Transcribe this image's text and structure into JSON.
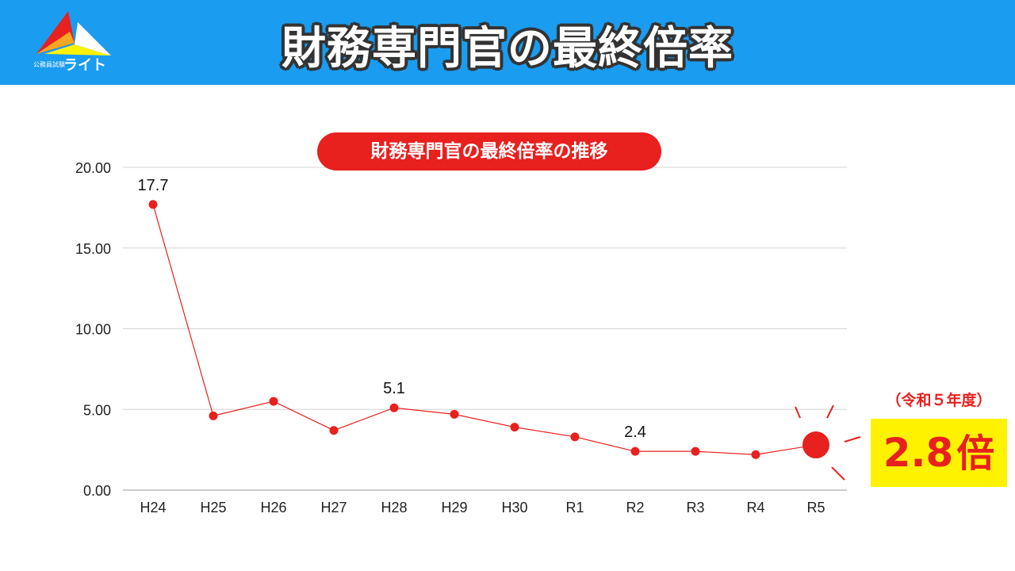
{
  "header": {
    "title": "財務専門官の最終倍率",
    "logo_text": "ライト",
    "logo_small": "公務員試験"
  },
  "chart_data": {
    "type": "line",
    "title": "財務専門官の最終倍率の推移",
    "categories": [
      "H24",
      "H25",
      "H26",
      "H27",
      "H28",
      "H29",
      "H30",
      "R1",
      "R2",
      "R3",
      "R4",
      "R5"
    ],
    "series": [
      {
        "values": [
          17.7,
          4.6,
          5.5,
          3.7,
          5.1,
          4.7,
          3.9,
          3.3,
          2.4,
          2.4,
          2.2,
          2.8
        ]
      }
    ],
    "yticks": [
      "0.00",
      "5.00",
      "10.00",
      "15.00",
      "20.00"
    ],
    "ylim": [
      0,
      20
    ],
    "data_labels": [
      {
        "index": 0,
        "text": "17.7"
      },
      {
        "index": 4,
        "text": "5.1"
      },
      {
        "index": 8,
        "text": "2.4"
      }
    ],
    "grid": true,
    "color": "#e8201e",
    "highlight_index": 11
  },
  "callout": {
    "note": "（令和５年度）",
    "value": "2.8",
    "unit": "倍"
  },
  "colors": {
    "header": "#1a9cf0",
    "accent": "#e8201e",
    "highlight_box": "#fff200"
  }
}
